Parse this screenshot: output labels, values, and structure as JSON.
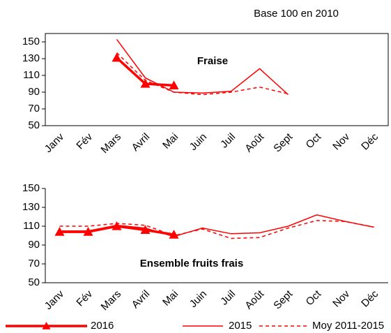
{
  "chart_data": [
    {
      "type": "line",
      "title": "Fraise",
      "subtitle": "Base 100 en 2010",
      "categories": [
        "Janv",
        "Fév",
        "Mars",
        "Avril",
        "Mai",
        "Juin",
        "Juil",
        "Août",
        "Sept",
        "Oct",
        "Nov",
        "Déc"
      ],
      "series": [
        {
          "name": "2016",
          "color": "#ff0000",
          "width": 3.5,
          "marker": "triangle",
          "style": "solid",
          "values": [
            null,
            null,
            131,
            100,
            98,
            null,
            null,
            null,
            null,
            null,
            null,
            null
          ]
        },
        {
          "name": "2015",
          "color": "#ff0000",
          "width": 1.5,
          "style": "solid",
          "values": [
            null,
            null,
            153,
            107,
            90,
            89,
            91,
            118,
            87,
            null,
            null,
            null
          ]
        },
        {
          "name": "Moy 2011-2015",
          "color": "#ff0000",
          "width": 1.5,
          "style": "dashed",
          "values": [
            null,
            null,
            137,
            104,
            90,
            87,
            90,
            96,
            88,
            null,
            null,
            null
          ]
        }
      ],
      "ylim": [
        50,
        160
      ],
      "yticks": [
        50,
        70,
        90,
        110,
        130,
        150
      ],
      "frame": true
    },
    {
      "type": "line",
      "title": "Ensemble fruits frais",
      "categories": [
        "Janv",
        "Fév",
        "Mars",
        "Avril",
        "Mai",
        "Juin",
        "Juil",
        "Août",
        "Sept",
        "Oct",
        "Nov",
        "Déc"
      ],
      "series": [
        {
          "name": "2016",
          "color": "#ff0000",
          "width": 3.5,
          "marker": "triangle",
          "style": "solid",
          "values": [
            104,
            104,
            110,
            106,
            101,
            null,
            null,
            null,
            null,
            null,
            null,
            null
          ]
        },
        {
          "name": "2015",
          "color": "#ff0000",
          "width": 1.5,
          "style": "solid",
          "values": [
            105,
            105,
            111,
            108,
            99,
            108,
            102,
            103,
            110,
            122,
            115,
            109
          ]
        },
        {
          "name": "Moy 2011-2015",
          "color": "#ff0000",
          "width": 1.5,
          "style": "dashed",
          "values": [
            110,
            110,
            113,
            111,
            100,
            107,
            97,
            98,
            108,
            116,
            115,
            109
          ]
        }
      ],
      "ylim": [
        50,
        150
      ],
      "yticks": [
        50,
        70,
        90,
        110,
        130,
        150
      ],
      "frame": false
    }
  ]
}
